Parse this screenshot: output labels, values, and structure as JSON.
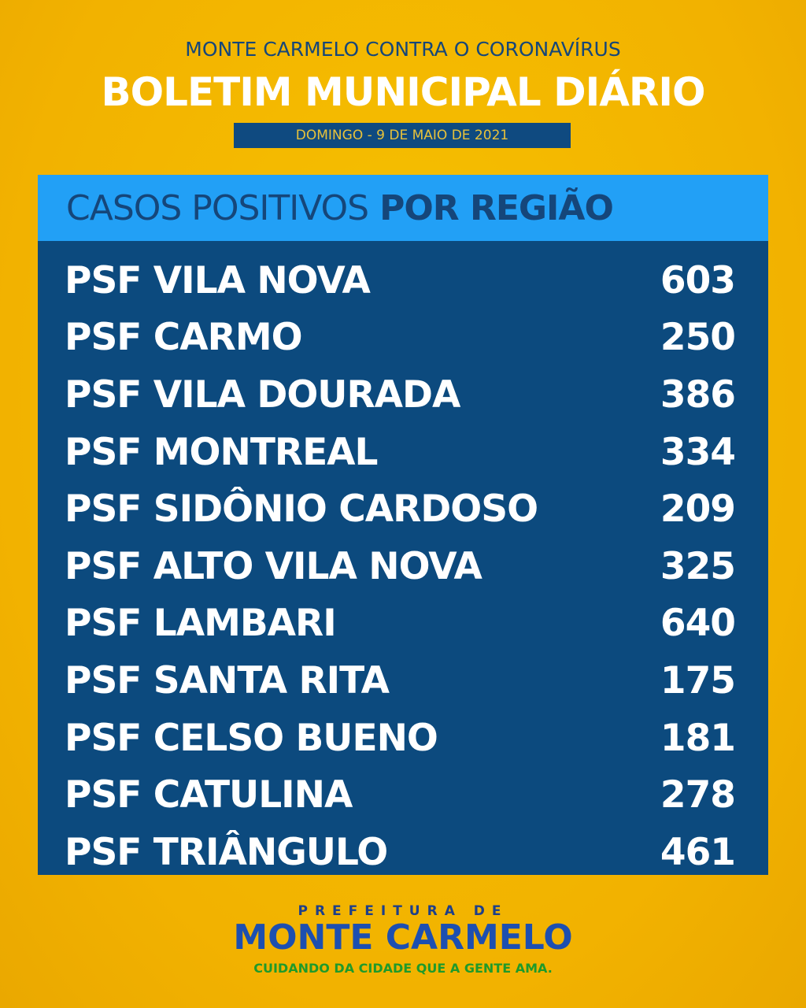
{
  "header": {
    "subtitle": "MONTE CARMELO CONTRA O CORONAVÍRUS",
    "title": "BOLETIM MUNICIPAL DIÁRIO",
    "date": "DOMINGO - 9 DE MAIO DE 2021"
  },
  "panel": {
    "heading_light": "CASOS POSITIVOS",
    "heading_bold": "POR REGIÃO",
    "rows": [
      {
        "region": "PSF VILA NOVA",
        "count": "603"
      },
      {
        "region": "PSF CARMO",
        "count": "250"
      },
      {
        "region": "PSF VILA DOURADA",
        "count": "386"
      },
      {
        "region": "PSF MONTREAL",
        "count": "334"
      },
      {
        "region": "PSF SIDÔNIO CARDOSO",
        "count": "209"
      },
      {
        "region": "PSF ALTO VILA NOVA",
        "count": "325"
      },
      {
        "region": "PSF LAMBARI",
        "count": "640"
      },
      {
        "region": "PSF SANTA RITA",
        "count": "175"
      },
      {
        "region": "PSF CELSO BUENO",
        "count": "181"
      },
      {
        "region": "PSF CATULINA",
        "count": "278"
      },
      {
        "region": "PSF TRIÂNGULO",
        "count": "461"
      }
    ]
  },
  "footer": {
    "line1": "PREFEITURA DE",
    "line2": "MONTE CARMELO",
    "slogan": "CUIDANDO DA CIDADE QUE A GENTE AMA."
  },
  "colors": {
    "background": "#f2b200",
    "panel": "#0c4a7e",
    "panel_header": "#22a0f6",
    "slogan": "#1f9a2a"
  }
}
